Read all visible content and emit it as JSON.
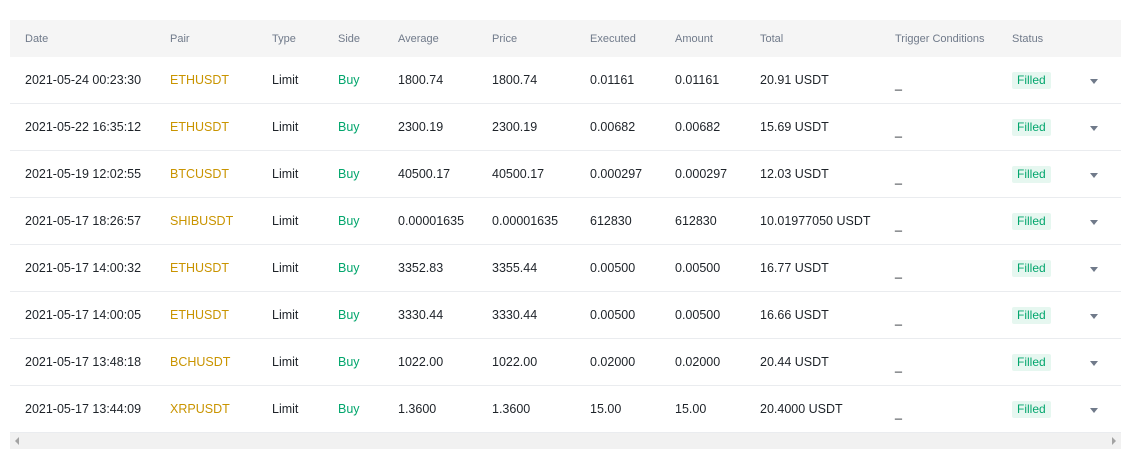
{
  "columns": {
    "date": "Date",
    "pair": "Pair",
    "type": "Type",
    "side": "Side",
    "average": "Average",
    "price": "Price",
    "executed": "Executed",
    "amount": "Amount",
    "total": "Total",
    "trigger": "Trigger Conditions",
    "status": "Status"
  },
  "rows": [
    {
      "date": "2021-05-24 00:23:30",
      "pair": "ETHUSDT",
      "type": "Limit",
      "side": "Buy",
      "average": "1800.74",
      "price": "1800.74",
      "executed": "0.01161",
      "amount": "0.01161",
      "total": "20.91 USDT",
      "trigger": "_",
      "status": "Filled"
    },
    {
      "date": "2021-05-22 16:35:12",
      "pair": "ETHUSDT",
      "type": "Limit",
      "side": "Buy",
      "average": "2300.19",
      "price": "2300.19",
      "executed": "0.00682",
      "amount": "0.00682",
      "total": "15.69 USDT",
      "trigger": "_",
      "status": "Filled"
    },
    {
      "date": "2021-05-19 12:02:55",
      "pair": "BTCUSDT",
      "type": "Limit",
      "side": "Buy",
      "average": "40500.17",
      "price": "40500.17",
      "executed": "0.000297",
      "amount": "0.000297",
      "total": "12.03 USDT",
      "trigger": "_",
      "status": "Filled"
    },
    {
      "date": "2021-05-17 18:26:57",
      "pair": "SHIBUSDT",
      "type": "Limit",
      "side": "Buy",
      "average": "0.00001635",
      "price": "0.00001635",
      "executed": "612830",
      "amount": "612830",
      "total": "10.01977050 USDT",
      "trigger": "_",
      "status": "Filled"
    },
    {
      "date": "2021-05-17 14:00:32",
      "pair": "ETHUSDT",
      "type": "Limit",
      "side": "Buy",
      "average": "3352.83",
      "price": "3355.44",
      "executed": "0.00500",
      "amount": "0.00500",
      "total": "16.77 USDT",
      "trigger": "_",
      "status": "Filled"
    },
    {
      "date": "2021-05-17 14:00:05",
      "pair": "ETHUSDT",
      "type": "Limit",
      "side": "Buy",
      "average": "3330.44",
      "price": "3330.44",
      "executed": "0.00500",
      "amount": "0.00500",
      "total": "16.66 USDT",
      "trigger": "_",
      "status": "Filled"
    },
    {
      "date": "2021-05-17 13:48:18",
      "pair": "BCHUSDT",
      "type": "Limit",
      "side": "Buy",
      "average": "1022.00",
      "price": "1022.00",
      "executed": "0.02000",
      "amount": "0.02000",
      "total": "20.44 USDT",
      "trigger": "_",
      "status": "Filled"
    },
    {
      "date": "2021-05-17 13:44:09",
      "pair": "XRPUSDT",
      "type": "Limit",
      "side": "Buy",
      "average": "1.3600",
      "price": "1.3600",
      "executed": "15.00",
      "amount": "15.00",
      "total": "20.4000 USDT",
      "trigger": "_",
      "status": "Filled"
    }
  ],
  "colors": {
    "pair": "#c99400",
    "buy": "#03a66d",
    "status_bg": "#e6f7f0",
    "header_bg": "#f5f5f5"
  },
  "icons": {
    "expand": "caret-down-icon",
    "scroll_left": "arrow-left-icon",
    "scroll_right": "arrow-right-icon"
  }
}
